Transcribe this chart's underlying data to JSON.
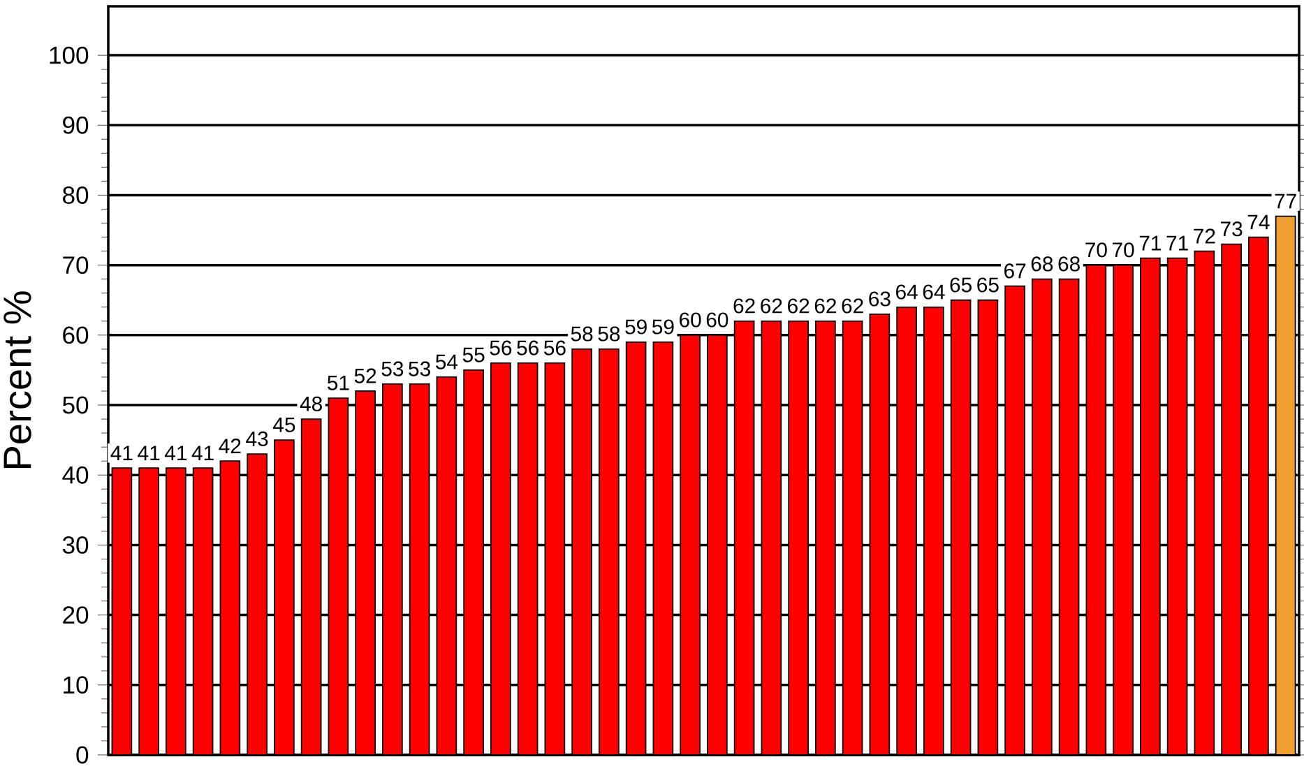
{
  "chart_data": {
    "type": "bar",
    "ylabel": "Percent %",
    "categories": [
      null,
      null,
      null,
      null,
      null,
      null,
      null,
      null,
      null,
      null,
      null,
      null,
      null,
      null,
      null,
      null,
      null,
      null,
      null,
      null,
      null,
      null,
      null,
      null,
      null,
      null,
      null,
      null,
      null,
      null,
      null,
      null,
      null,
      null,
      null,
      null,
      null,
      null,
      null,
      null,
      null,
      null,
      null,
      null
    ],
    "values": [
      41,
      41,
      41,
      41,
      42,
      43,
      45,
      48,
      51,
      52,
      53,
      53,
      54,
      55,
      56,
      56,
      56,
      58,
      58,
      59,
      59,
      60,
      60,
      62,
      62,
      62,
      62,
      62,
      63,
      64,
      64,
      65,
      65,
      67,
      68,
      68,
      70,
      70,
      71,
      71,
      72,
      73,
      74,
      77
    ],
    "colors": [
      "#ff0000",
      "#ff0000",
      "#ff0000",
      "#ff0000",
      "#ff0000",
      "#ff0000",
      "#ff0000",
      "#ff0000",
      "#ff0000",
      "#ff0000",
      "#ff0000",
      "#ff0000",
      "#ff0000",
      "#ff0000",
      "#ff0000",
      "#ff0000",
      "#ff0000",
      "#ff0000",
      "#ff0000",
      "#ff0000",
      "#ff0000",
      "#ff0000",
      "#ff0000",
      "#ff0000",
      "#ff0000",
      "#ff0000",
      "#ff0000",
      "#ff0000",
      "#ff0000",
      "#ff0000",
      "#ff0000",
      "#ff0000",
      "#ff0000",
      "#ff0000",
      "#ff0000",
      "#ff0000",
      "#ff0000",
      "#ff0000",
      "#ff0000",
      "#ff0000",
      "#ff0000",
      "#ff0000",
      "#ff0000",
      "#f0a030"
    ],
    "ylim": [
      0,
      107
    ],
    "yticks": [
      0,
      10,
      20,
      30,
      40,
      50,
      60,
      70,
      80,
      90,
      100
    ],
    "grid": "y",
    "data_labels": true
  }
}
